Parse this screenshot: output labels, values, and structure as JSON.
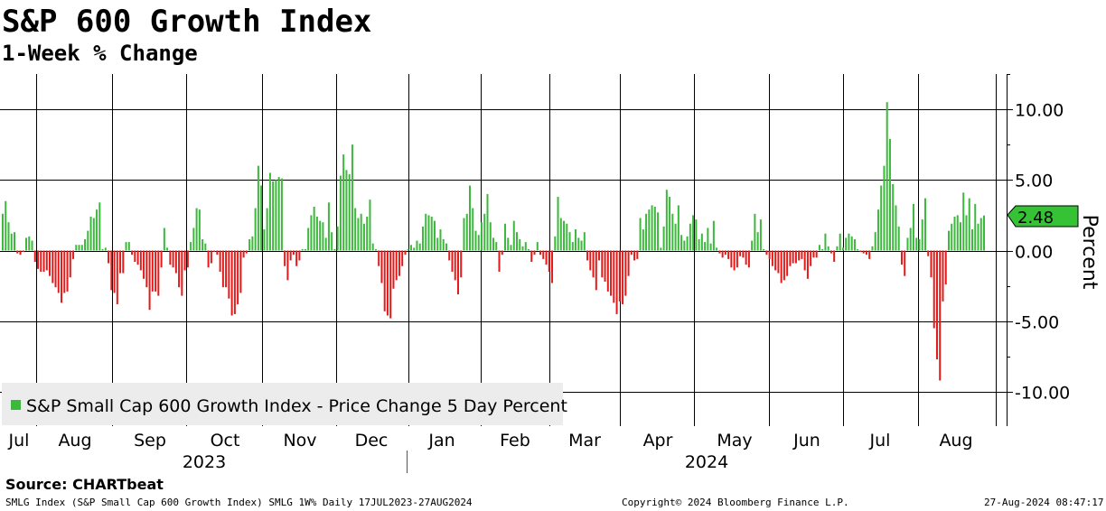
{
  "header": {
    "title": "S&P 600 Growth Index",
    "subtitle": "1-Week % Change"
  },
  "footer": {
    "source": "Source: CHARTbeat",
    "left": "SMLG Index (S&P Small Cap 600 Growth Index) SMLG 1W%  Daily 17JUL2023-27AUG2024",
    "center": "Copyright© 2024 Bloomberg Finance L.P.",
    "right": "27-Aug-2024 08:47:17"
  },
  "colors": {
    "positive": "#3cb83c",
    "negative": "#e21a1a",
    "last_value_box": "#35c335",
    "legend_bg": "#ececec",
    "grid": "#000000"
  },
  "chart_data": {
    "type": "bar",
    "title": "S&P 600 Growth Index",
    "subtitle": "1-Week % Change",
    "ylabel": "Percent",
    "ylim": [
      -12.3,
      12.5
    ],
    "yticks": [
      10.0,
      5.0,
      0.0,
      -5.0,
      -10.0
    ],
    "ytick_labels": [
      "10.00",
      "5.00",
      "0.00",
      "-5.00",
      "-10.00"
    ],
    "legend": "S&P Small Cap 600 Growth Index - Price Change 5 Day Percent",
    "legend_position": "bottom-left",
    "last_value": 2.48,
    "last_value_label": "2.48",
    "x_range": [
      "2023-07-17",
      "2024-08-27"
    ],
    "months": [
      "Jul",
      "Aug",
      "Sep",
      "Oct",
      "Nov",
      "Dec",
      "Jan",
      "Feb",
      "Mar",
      "Apr",
      "May",
      "Jun",
      "Jul",
      "Aug"
    ],
    "years": [
      "2023",
      "2024"
    ],
    "series": [
      {
        "name": "S&P Small Cap 600 Growth Index - Price Change 5 Day Percent",
        "values": [
          2.6,
          3.5,
          2.0,
          1.2,
          1.3,
          -0.2,
          -0.3,
          -0.1,
          0.9,
          1.0,
          0.7,
          -0.8,
          -1.3,
          -1.5,
          -1.5,
          -1.4,
          -1.8,
          -2.3,
          -2.6,
          -3.0,
          -3.7,
          -3.0,
          -2.9,
          -1.9,
          -0.6,
          0.4,
          0.4,
          0.4,
          0.8,
          1.4,
          2.4,
          2.3,
          2.9,
          3.4,
          0.1,
          0.2,
          -0.9,
          -2.8,
          -3.0,
          -3.8,
          -1.6,
          -1.6,
          0.6,
          0.6,
          -0.3,
          -0.8,
          -1.0,
          -1.4,
          -2.0,
          -2.6,
          -4.2,
          -2.9,
          -2.9,
          -3.2,
          -1.2,
          1.6,
          0.2,
          -1.0,
          -1.2,
          -1.6,
          -2.6,
          -3.2,
          -1.4,
          -1.2,
          0.6,
          1.6,
          3.0,
          2.9,
          0.8,
          0.5,
          -1.2,
          -0.9,
          -0.1,
          -0.3,
          -1.5,
          -2.6,
          -2.6,
          -3.4,
          -4.6,
          -4.5,
          -3.8,
          -3.0,
          -0.5,
          -0.2,
          0.8,
          1.0,
          3.0,
          6.0,
          4.6,
          1.5,
          3.0,
          5.5,
          4.9,
          5.0,
          5.2,
          5.1,
          -1.1,
          -2.1,
          -0.7,
          -0.3,
          -1.1,
          -0.7,
          0.1,
          0.1,
          1.6,
          2.5,
          3.1,
          2.4,
          2.1,
          2.0,
          0.9,
          3.4,
          1.3,
          0.1,
          1.7,
          5.3,
          6.8,
          5.7,
          5.4,
          7.5,
          3.0,
          2.3,
          2.6,
          1.9,
          2.4,
          3.6,
          0.5,
          0.1,
          -1.1,
          -2.3,
          -4.3,
          -4.6,
          -4.8,
          -2.7,
          -2.1,
          -1.8,
          -1.1,
          -0.3,
          0.1,
          0.4,
          0.2,
          0.7,
          0.5,
          1.7,
          2.6,
          2.5,
          2.4,
          2.1,
          0.9,
          1.5,
          0.8,
          0.5,
          -0.7,
          -1.5,
          -2.1,
          -3.1,
          -1.9,
          2.3,
          2.6,
          4.6,
          3.0,
          1.4,
          1.1,
          2.0,
          2.6,
          4.0,
          2.0,
          0.9,
          0.6,
          -1.5,
          -0.3,
          1.9,
          0.9,
          0.4,
          2.1,
          1.3,
          0.8,
          0.3,
          0.6,
          0.1,
          -0.8,
          -0.3,
          0.6,
          -0.3,
          -0.6,
          -1.0,
          -1.5,
          -2.3,
          1.0,
          3.8,
          2.3,
          2.1,
          1.9,
          1.3,
          0.6,
          1.5,
          0.9,
          0.7,
          1.3,
          -0.7,
          -1.4,
          -1.9,
          -2.8,
          -0.7,
          -1.9,
          -2.2,
          -2.9,
          -3.2,
          -3.7,
          -4.5,
          -3.6,
          -3.8,
          -3.2,
          -1.8,
          -0.3,
          -0.7,
          -0.6,
          2.3,
          1.5,
          2.6,
          2.9,
          3.2,
          3.1,
          2.7,
          0.2,
          1.7,
          4.3,
          3.8,
          2.6,
          1.9,
          3.2,
          1.1,
          0.7,
          1.0,
          1.9,
          2.5,
          2.2,
          0.8,
          1.2,
          0.6,
          1.6,
          0.5,
          2.1,
          0.2,
          -0.2,
          -0.5,
          -0.3,
          -0.6,
          -1.2,
          -1.4,
          -1.2,
          -0.4,
          -0.5,
          -1.0,
          -1.2,
          0.7,
          2.6,
          1.3,
          2.2,
          0.1,
          -0.3,
          -0.6,
          -1.1,
          -1.4,
          -1.6,
          -2.3,
          -2.1,
          -1.8,
          -1.1,
          -0.9,
          -0.9,
          -0.7,
          -0.6,
          -1.4,
          -2.0,
          -1.1,
          -0.5,
          -0.5,
          0.4,
          0.1,
          1.2,
          0.3,
          -0.2,
          -0.8,
          0.3,
          1.2,
          0.2,
          0.9,
          1.2,
          1.0,
          0.8,
          0.1,
          -0.1,
          -0.2,
          -0.3,
          -0.6,
          0.3,
          1.3,
          2.9,
          4.6,
          6.0,
          10.5,
          7.9,
          4.7,
          3.2,
          1.7,
          -1.0,
          -1.8,
          0.9,
          1.6,
          3.3,
          0.9,
          0.8,
          2.2,
          3.7,
          -0.4,
          -1.9,
          -5.5,
          -7.7,
          -9.2,
          -3.6,
          -2.4,
          1.4,
          1.9,
          2.4,
          2.5,
          2.0,
          4.1,
          2.5,
          3.7,
          1.5,
          3.3,
          1.9,
          2.3,
          2.48
        ]
      }
    ]
  }
}
